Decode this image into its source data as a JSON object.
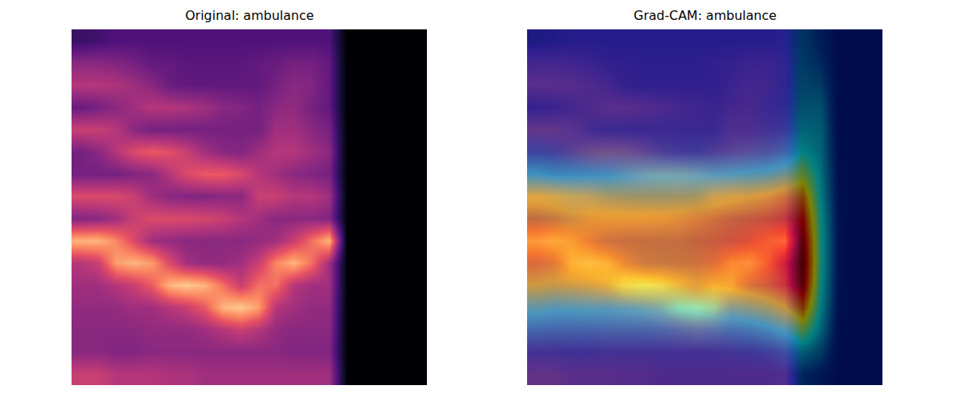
{
  "chart_data": [
    {
      "type": "heatmap",
      "title": "Original: ambulance",
      "color": "magma",
      "zlim": [
        0,
        1
      ],
      "tick_labels": false,
      "cells": [
        [
          0.2,
          0.22,
          0.25,
          0.25,
          0.25,
          0.25,
          0.25,
          0.25,
          0.25,
          0.25,
          0.25,
          0.25,
          0.25,
          0.25,
          0.25,
          0,
          0,
          0,
          0,
          0
        ],
        [
          0.4,
          0.4,
          0.38,
          0.35,
          0.3,
          0.3,
          0.28,
          0.28,
          0.28,
          0.28,
          0.3,
          0.32,
          0.35,
          0.35,
          0.3,
          0,
          0,
          0,
          0,
          0
        ],
        [
          0.5,
          0.5,
          0.48,
          0.45,
          0.4,
          0.32,
          0.3,
          0.3,
          0.3,
          0.3,
          0.3,
          0.35,
          0.4,
          0.38,
          0.3,
          0,
          0,
          0,
          0,
          0
        ],
        [
          0.32,
          0.35,
          0.4,
          0.45,
          0.5,
          0.5,
          0.48,
          0.45,
          0.4,
          0.38,
          0.35,
          0.4,
          0.42,
          0.35,
          0.3,
          0,
          0,
          0,
          0,
          0
        ],
        [
          0.55,
          0.55,
          0.5,
          0.4,
          0.35,
          0.35,
          0.35,
          0.35,
          0.35,
          0.35,
          0.35,
          0.45,
          0.45,
          0.4,
          0.35,
          0,
          0,
          0,
          0,
          0
        ],
        [
          0.35,
          0.4,
          0.5,
          0.6,
          0.65,
          0.62,
          0.55,
          0.45,
          0.4,
          0.38,
          0.45,
          0.5,
          0.5,
          0.45,
          0.4,
          0,
          0,
          0,
          0,
          0
        ],
        [
          0.35,
          0.35,
          0.35,
          0.38,
          0.4,
          0.5,
          0.6,
          0.65,
          0.65,
          0.6,
          0.5,
          0.45,
          0.4,
          0.38,
          0.35,
          0,
          0,
          0,
          0,
          0
        ],
        [
          0.6,
          0.6,
          0.6,
          0.55,
          0.45,
          0.4,
          0.38,
          0.38,
          0.4,
          0.4,
          0.55,
          0.55,
          0.5,
          0.5,
          0.45,
          0,
          0,
          0,
          0,
          0
        ],
        [
          0.38,
          0.4,
          0.45,
          0.55,
          0.6,
          0.6,
          0.6,
          0.58,
          0.55,
          0.5,
          0.45,
          0.4,
          0.4,
          0.4,
          0.38,
          0,
          0,
          0,
          0,
          0
        ],
        [
          0.85,
          0.85,
          0.75,
          0.6,
          0.45,
          0.42,
          0.4,
          0.4,
          0.4,
          0.4,
          0.42,
          0.45,
          0.55,
          0.7,
          0.85,
          0,
          0,
          0,
          0,
          0
        ],
        [
          0.5,
          0.55,
          0.8,
          0.85,
          0.8,
          0.6,
          0.45,
          0.42,
          0.42,
          0.45,
          0.55,
          0.75,
          0.85,
          0.7,
          0.45,
          0,
          0,
          0,
          0,
          0
        ],
        [
          0.45,
          0.45,
          0.5,
          0.55,
          0.65,
          0.85,
          0.9,
          0.85,
          0.7,
          0.55,
          0.7,
          0.7,
          0.5,
          0.45,
          0.45,
          0,
          0,
          0,
          0,
          0
        ],
        [
          0.42,
          0.42,
          0.42,
          0.45,
          0.45,
          0.5,
          0.55,
          0.65,
          0.85,
          0.9,
          0.8,
          0.5,
          0.45,
          0.42,
          0.42,
          0,
          0,
          0,
          0,
          0
        ],
        [
          0.4,
          0.4,
          0.4,
          0.4,
          0.42,
          0.42,
          0.42,
          0.45,
          0.5,
          0.55,
          0.5,
          0.42,
          0.4,
          0.4,
          0.4,
          0,
          0,
          0,
          0,
          0
        ],
        [
          0.4,
          0.4,
          0.38,
          0.38,
          0.4,
          0.4,
          0.4,
          0.4,
          0.4,
          0.4,
          0.4,
          0.4,
          0.38,
          0.38,
          0.38,
          0,
          0,
          0,
          0,
          0
        ],
        [
          0.55,
          0.55,
          0.5,
          0.5,
          0.5,
          0.48,
          0.48,
          0.45,
          0.45,
          0.45,
          0.45,
          0.45,
          0.45,
          0.45,
          0.45,
          0,
          0,
          0,
          0,
          0
        ]
      ]
    },
    {
      "type": "heatmap_overlay",
      "title": "Grad-CAM: ambulance",
      "color": "magma",
      "zlim": [
        0,
        1
      ],
      "tick_labels": false,
      "cells": [
        [
          0.2,
          0.22,
          0.25,
          0.25,
          0.25,
          0.25,
          0.25,
          0.25,
          0.25,
          0.25,
          0.25,
          0.25,
          0.25,
          0.25,
          0.25,
          0,
          0,
          0,
          0,
          0
        ],
        [
          0.4,
          0.4,
          0.38,
          0.35,
          0.3,
          0.3,
          0.28,
          0.28,
          0.28,
          0.28,
          0.3,
          0.32,
          0.35,
          0.35,
          0.3,
          0,
          0,
          0,
          0,
          0
        ],
        [
          0.5,
          0.5,
          0.48,
          0.45,
          0.4,
          0.32,
          0.3,
          0.3,
          0.3,
          0.3,
          0.3,
          0.35,
          0.4,
          0.38,
          0.3,
          0,
          0,
          0,
          0,
          0
        ],
        [
          0.32,
          0.35,
          0.4,
          0.45,
          0.5,
          0.5,
          0.48,
          0.45,
          0.4,
          0.38,
          0.35,
          0.4,
          0.42,
          0.35,
          0.3,
          0,
          0,
          0,
          0,
          0
        ],
        [
          0.55,
          0.55,
          0.5,
          0.4,
          0.35,
          0.35,
          0.35,
          0.35,
          0.35,
          0.35,
          0.35,
          0.45,
          0.45,
          0.4,
          0.35,
          0,
          0,
          0,
          0,
          0
        ],
        [
          0.35,
          0.4,
          0.5,
          0.6,
          0.65,
          0.62,
          0.55,
          0.45,
          0.4,
          0.38,
          0.45,
          0.5,
          0.5,
          0.45,
          0.4,
          0,
          0,
          0,
          0,
          0
        ],
        [
          0.35,
          0.35,
          0.35,
          0.38,
          0.4,
          0.5,
          0.6,
          0.65,
          0.65,
          0.6,
          0.5,
          0.45,
          0.4,
          0.38,
          0.35,
          0,
          0,
          0,
          0,
          0
        ],
        [
          0.6,
          0.6,
          0.6,
          0.55,
          0.45,
          0.4,
          0.38,
          0.38,
          0.4,
          0.4,
          0.55,
          0.55,
          0.5,
          0.5,
          0.45,
          0,
          0,
          0,
          0,
          0
        ],
        [
          0.38,
          0.4,
          0.45,
          0.55,
          0.6,
          0.6,
          0.6,
          0.58,
          0.55,
          0.5,
          0.45,
          0.4,
          0.4,
          0.4,
          0.38,
          0,
          0,
          0,
          0,
          0
        ],
        [
          0.85,
          0.85,
          0.75,
          0.6,
          0.45,
          0.42,
          0.4,
          0.4,
          0.4,
          0.4,
          0.42,
          0.45,
          0.55,
          0.7,
          0.85,
          0,
          0,
          0,
          0,
          0
        ],
        [
          0.5,
          0.55,
          0.8,
          0.85,
          0.8,
          0.6,
          0.45,
          0.42,
          0.42,
          0.45,
          0.55,
          0.75,
          0.85,
          0.7,
          0.45,
          0,
          0,
          0,
          0,
          0
        ],
        [
          0.45,
          0.45,
          0.5,
          0.55,
          0.65,
          0.85,
          0.9,
          0.85,
          0.7,
          0.55,
          0.7,
          0.7,
          0.5,
          0.45,
          0.45,
          0,
          0,
          0,
          0,
          0
        ],
        [
          0.42,
          0.42,
          0.42,
          0.45,
          0.45,
          0.5,
          0.55,
          0.65,
          0.85,
          0.9,
          0.8,
          0.5,
          0.45,
          0.42,
          0.42,
          0,
          0,
          0,
          0,
          0
        ],
        [
          0.4,
          0.4,
          0.4,
          0.4,
          0.42,
          0.42,
          0.42,
          0.45,
          0.5,
          0.55,
          0.5,
          0.42,
          0.4,
          0.4,
          0.4,
          0,
          0,
          0,
          0,
          0
        ],
        [
          0.4,
          0.4,
          0.38,
          0.38,
          0.4,
          0.4,
          0.4,
          0.4,
          0.4,
          0.4,
          0.4,
          0.4,
          0.38,
          0.38,
          0.38,
          0,
          0,
          0,
          0,
          0
        ],
        [
          0.55,
          0.55,
          0.5,
          0.5,
          0.5,
          0.48,
          0.48,
          0.45,
          0.45,
          0.45,
          0.45,
          0.45,
          0.45,
          0.45,
          0.45,
          0,
          0,
          0,
          0,
          0
        ]
      ],
      "overlay": {
        "color": "jet",
        "zlim": [
          0,
          1
        ],
        "cells": [
          [
            0.08,
            0.08,
            0.08,
            0.08,
            0.08,
            0.08,
            0.08,
            0.08,
            0.08,
            0.08,
            0.08,
            0.08,
            0.08,
            0.08,
            0.1,
            0.18,
            0.12,
            0.05,
            0.05,
            0.05
          ],
          [
            0.08,
            0.08,
            0.08,
            0.08,
            0.08,
            0.08,
            0.08,
            0.08,
            0.08,
            0.08,
            0.08,
            0.08,
            0.08,
            0.08,
            0.1,
            0.2,
            0.15,
            0.05,
            0.05,
            0.05
          ],
          [
            0.08,
            0.08,
            0.08,
            0.08,
            0.08,
            0.08,
            0.08,
            0.08,
            0.08,
            0.08,
            0.08,
            0.08,
            0.08,
            0.08,
            0.1,
            0.22,
            0.2,
            0.05,
            0.05,
            0.05
          ],
          [
            0.08,
            0.08,
            0.08,
            0.08,
            0.08,
            0.08,
            0.08,
            0.08,
            0.08,
            0.08,
            0.08,
            0.08,
            0.08,
            0.1,
            0.12,
            0.25,
            0.25,
            0.05,
            0.05,
            0.05
          ],
          [
            0.1,
            0.1,
            0.1,
            0.1,
            0.1,
            0.1,
            0.1,
            0.1,
            0.1,
            0.1,
            0.1,
            0.1,
            0.1,
            0.12,
            0.15,
            0.3,
            0.28,
            0.06,
            0.05,
            0.05
          ],
          [
            0.18,
            0.16,
            0.15,
            0.15,
            0.15,
            0.15,
            0.15,
            0.15,
            0.15,
            0.15,
            0.15,
            0.16,
            0.18,
            0.2,
            0.25,
            0.38,
            0.3,
            0.06,
            0.05,
            0.05
          ],
          [
            0.38,
            0.35,
            0.35,
            0.35,
            0.35,
            0.35,
            0.35,
            0.35,
            0.35,
            0.35,
            0.36,
            0.38,
            0.4,
            0.42,
            0.48,
            0.55,
            0.33,
            0.07,
            0.05,
            0.05
          ],
          [
            0.6,
            0.58,
            0.55,
            0.55,
            0.55,
            0.55,
            0.55,
            0.55,
            0.55,
            0.56,
            0.58,
            0.6,
            0.62,
            0.65,
            0.7,
            0.75,
            0.36,
            0.07,
            0.05,
            0.05
          ],
          [
            0.7,
            0.68,
            0.65,
            0.65,
            0.65,
            0.65,
            0.65,
            0.65,
            0.66,
            0.68,
            0.7,
            0.72,
            0.74,
            0.76,
            0.8,
            0.88,
            0.4,
            0.08,
            0.05,
            0.05
          ],
          [
            0.75,
            0.72,
            0.7,
            0.7,
            0.7,
            0.7,
            0.7,
            0.7,
            0.7,
            0.72,
            0.74,
            0.76,
            0.78,
            0.8,
            0.85,
            0.96,
            0.42,
            0.08,
            0.05,
            0.05
          ],
          [
            0.72,
            0.7,
            0.68,
            0.68,
            0.68,
            0.68,
            0.68,
            0.68,
            0.69,
            0.7,
            0.72,
            0.74,
            0.77,
            0.8,
            0.86,
            1.0,
            0.42,
            0.08,
            0.05,
            0.05
          ],
          [
            0.62,
            0.6,
            0.6,
            0.6,
            0.6,
            0.6,
            0.6,
            0.6,
            0.6,
            0.62,
            0.64,
            0.66,
            0.7,
            0.74,
            0.82,
            0.96,
            0.4,
            0.08,
            0.05,
            0.05
          ],
          [
            0.42,
            0.4,
            0.4,
            0.4,
            0.4,
            0.4,
            0.4,
            0.4,
            0.4,
            0.42,
            0.44,
            0.46,
            0.5,
            0.55,
            0.62,
            0.78,
            0.36,
            0.07,
            0.05,
            0.05
          ],
          [
            0.26,
            0.25,
            0.25,
            0.25,
            0.25,
            0.25,
            0.25,
            0.25,
            0.25,
            0.26,
            0.27,
            0.28,
            0.3,
            0.34,
            0.4,
            0.52,
            0.3,
            0.06,
            0.05,
            0.05
          ],
          [
            0.12,
            0.12,
            0.12,
            0.12,
            0.12,
            0.12,
            0.12,
            0.12,
            0.12,
            0.12,
            0.12,
            0.13,
            0.14,
            0.16,
            0.2,
            0.28,
            0.2,
            0.05,
            0.05,
            0.05
          ],
          [
            0.08,
            0.08,
            0.08,
            0.08,
            0.08,
            0.08,
            0.08,
            0.08,
            0.08,
            0.08,
            0.08,
            0.08,
            0.08,
            0.08,
            0.1,
            0.14,
            0.1,
            0.05,
            0.05,
            0.05
          ]
        ]
      }
    }
  ]
}
